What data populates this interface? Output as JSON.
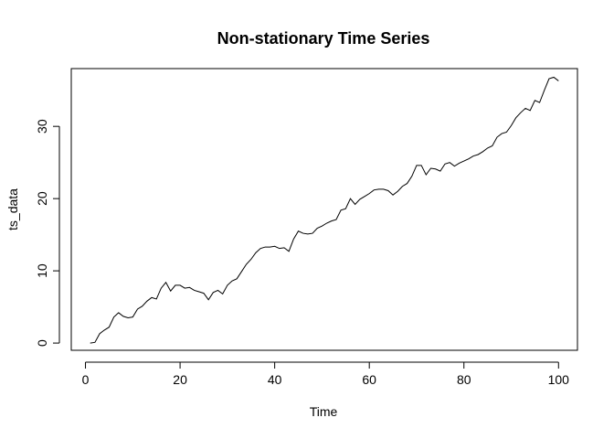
{
  "chart_data": {
    "type": "line",
    "title": "Non-stationary Time Series",
    "xlabel": "Time",
    "ylabel": "ts_data",
    "xlim": [
      -3,
      104
    ],
    "ylim": [
      -1,
      38
    ],
    "x_ticks": [
      0,
      20,
      40,
      60,
      80,
      100
    ],
    "x_tick_labels": [
      "0",
      "20",
      "40",
      "60",
      "80",
      "100"
    ],
    "y_ticks": [
      0,
      10,
      20,
      30
    ],
    "y_tick_labels": [
      "0",
      "10",
      "20",
      "30"
    ],
    "grid": false,
    "series": [
      {
        "x": [
          1,
          2,
          3,
          4,
          5,
          6,
          7,
          8,
          9,
          10,
          11,
          12,
          13,
          14,
          15,
          16,
          17,
          18,
          19,
          20,
          21,
          22,
          23,
          24,
          25,
          26,
          27,
          28,
          29,
          30,
          31,
          32,
          33,
          34,
          35,
          36,
          37,
          38,
          39,
          40,
          41,
          42,
          43,
          44,
          45,
          46,
          47,
          48,
          49,
          50,
          51,
          52,
          53,
          54,
          55,
          56,
          57,
          58,
          59,
          60,
          61,
          62,
          63,
          64,
          65,
          66,
          67,
          68,
          69,
          70,
          71,
          72,
          73,
          74,
          75,
          76,
          77,
          78,
          79,
          80,
          81,
          82,
          83,
          84,
          85,
          86,
          87,
          88,
          89,
          90,
          91,
          92,
          93,
          94,
          95,
          96,
          97,
          98,
          99,
          100
        ],
        "values": [
          0.0,
          0.1,
          1.3,
          1.8,
          2.2,
          3.6,
          4.2,
          3.7,
          3.5,
          3.6,
          4.7,
          5.1,
          5.8,
          6.3,
          6.1,
          7.6,
          8.4,
          7.2,
          8.0,
          8.0,
          7.6,
          7.7,
          7.3,
          7.1,
          6.9,
          6.0,
          7.0,
          7.3,
          6.8,
          8.0,
          8.6,
          8.9,
          9.9,
          10.9,
          11.6,
          12.5,
          13.1,
          13.3,
          13.3,
          13.4,
          13.1,
          13.2,
          12.7,
          14.4,
          15.5,
          15.2,
          15.1,
          15.2,
          15.9,
          16.2,
          16.6,
          16.9,
          17.1,
          18.4,
          18.6,
          20.0,
          19.2,
          19.9,
          20.3,
          20.7,
          21.2,
          21.3,
          21.3,
          21.1,
          20.5,
          21.0,
          21.7,
          22.1,
          23.1,
          24.6,
          24.6,
          23.3,
          24.2,
          24.1,
          23.8,
          24.8,
          25.0,
          24.5,
          24.9,
          25.2,
          25.5,
          25.9,
          26.1,
          26.5,
          27.0,
          27.3,
          28.5,
          29.0,
          29.2,
          30.1,
          31.2,
          31.9,
          32.5,
          32.2,
          33.6,
          33.3,
          35.0,
          36.6,
          36.8,
          36.3
        ]
      }
    ]
  }
}
